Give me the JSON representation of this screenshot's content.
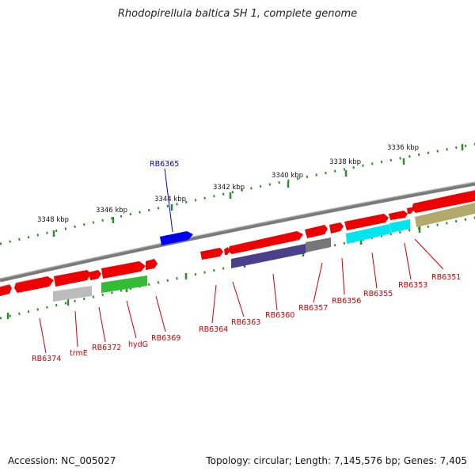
{
  "title": "Rhodopirellula baltica SH 1, complete genome",
  "footer": {
    "accession": "Accession: NC_005027",
    "summary": "Topology: circular; Length: 7,145,576 bp; Genes: 7,405"
  },
  "scale_labels": [
    "3348 kbp",
    "3346 kbp",
    "3344 kbp",
    "3342 kbp",
    "3340 kbp",
    "3338 kbp",
    "3336 kbp"
  ],
  "gene_labels": {
    "RB6365": "RB6365",
    "RB6374": "RB6374",
    "trmE": "trmE",
    "RB6372": "RB6372",
    "hydG": "hydG",
    "RB6369": "RB6369",
    "RB6364": "RB6364",
    "RB6363": "RB6363",
    "RB6360": "RB6360",
    "RB6357": "RB6357",
    "RB6356": "RB6356",
    "RB6355": "RB6355",
    "RB6353": "RB6353",
    "RB6351": "RB6351"
  },
  "colors": {
    "backbone": "#808080",
    "scale_ticks": "#2e8b2e",
    "gene_default": "#ee0000",
    "label_red": "#cc0000",
    "label_blue": "#0000cc",
    "blue_gene": "#0000ee",
    "grey_gene": "#bbbbbb",
    "green_gene": "#33bb33",
    "purple_gene": "#4a3f8a",
    "darkgrey_gene": "#777777",
    "cyan_gene": "#00e5ee",
    "olive_gene": "#b3a96a"
  }
}
